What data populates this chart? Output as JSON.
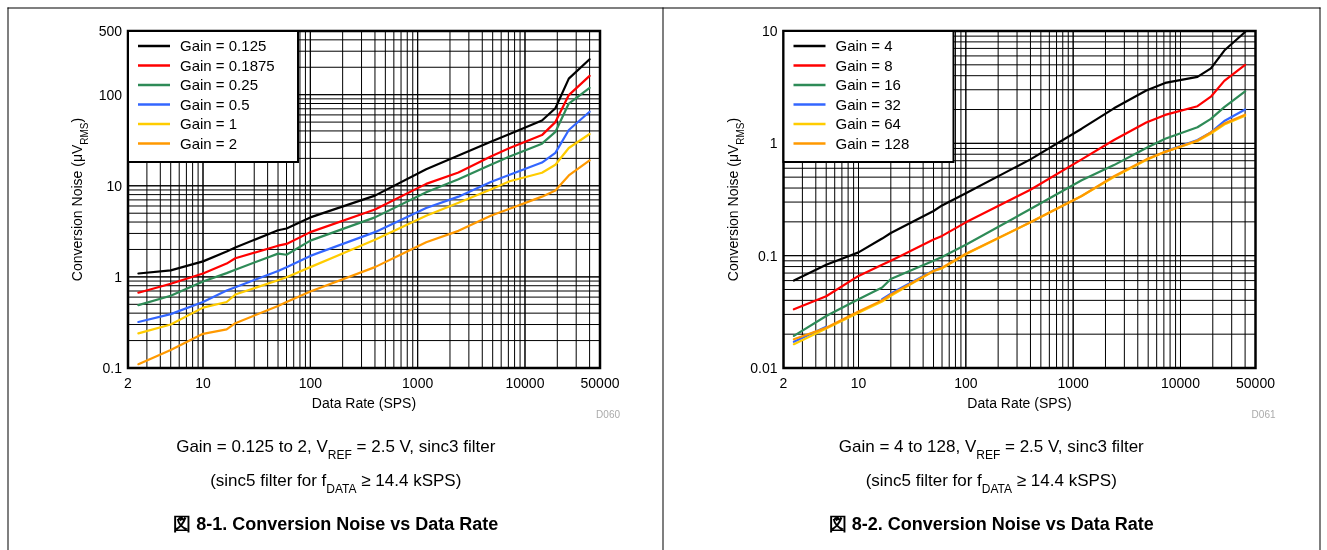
{
  "chart_data": [
    {
      "type": "line",
      "title": "図 8-1. Conversion Noise vs Data Rate",
      "xlabel": "Data Rate (SPS)",
      "ylabel": "Conversion Noise (μV$_{RMS}$)",
      "log": "xy",
      "grid": true,
      "legend": "top left",
      "line_style": "solid",
      "marker": "none",
      "annotations": [
        "D060",
        "Gain = 0.125 to 2, V$_{REF}$ = 2.5 V, sinc3 filter",
        "(sinc5 filter for f$_{DATA}$ ≥ 14.4 kSPS)"
      ],
      "xlim": [
        2,
        50000
      ],
      "xticks": [
        2,
        10,
        100,
        1000,
        10000,
        50000
      ],
      "ylim": [
        0.1,
        500
      ],
      "yticks": [
        0.1,
        1,
        10,
        100,
        500
      ],
      "x": [
        2.5,
        5,
        10,
        16.6,
        20,
        50,
        60,
        100,
        400,
        1200,
        2400,
        4800,
        7200,
        14400,
        19200,
        25600,
        40000
      ],
      "series": [
        {
          "name": "Gain = 0.125",
          "color": "#000000",
          "values": [
            1.09,
            1.18,
            1.48,
            1.9,
            2.1,
            3.25,
            3.4,
            4.5,
            7.8,
            15.2,
            21.5,
            30.5,
            37,
            52,
            71,
            150,
            245
          ]
        },
        {
          "name": "Gain = 0.1875",
          "color": "#ff0000",
          "values": [
            0.67,
            0.84,
            1.09,
            1.4,
            1.6,
            2.2,
            2.3,
            3.1,
            5.5,
            10.5,
            14,
            21,
            26,
            36,
            50,
            99,
            161
          ]
        },
        {
          "name": "Gain = 0.25",
          "color": "#2e8b57",
          "values": [
            0.49,
            0.62,
            0.89,
            1.1,
            1.2,
            1.8,
            1.75,
            2.5,
            4.5,
            8.5,
            11.8,
            17,
            21,
            29,
            39,
            80,
            119
          ]
        },
        {
          "name": "Gain = 0.5",
          "color": "#3366ff",
          "values": [
            0.32,
            0.39,
            0.53,
            0.71,
            0.77,
            1.16,
            1.28,
            1.7,
            3.1,
            5.7,
            7.6,
            11,
            13.2,
            18,
            23,
            41,
            65
          ]
        },
        {
          "name": "Gain = 1",
          "color": "#ffcc00",
          "values": [
            0.24,
            0.3,
            0.46,
            0.53,
            0.64,
            0.92,
            0.99,
            1.28,
            2.55,
            4.7,
            6.5,
            9.1,
            11.2,
            13.9,
            17,
            26,
            37
          ]
        },
        {
          "name": "Gain = 2",
          "color": "#ff9900",
          "values": [
            0.11,
            0.158,
            0.237,
            0.265,
            0.31,
            0.48,
            0.53,
            0.69,
            1.28,
            2.4,
            3.2,
            4.7,
            5.6,
            7.6,
            8.9,
            13,
            19
          ]
        }
      ]
    },
    {
      "type": "line",
      "title": "図 8-2. Conversion Noise vs Data Rate",
      "xlabel": "Data Rate (SPS)",
      "ylabel": "Conversion Noise (μV$_{RMS}$)",
      "log": "xy",
      "grid": true,
      "legend": "top left",
      "line_style": "solid",
      "marker": "none",
      "annotations": [
        "D061",
        "Gain = 4 to 128, V$_{REF}$ = 2.5 V, sinc3 filter",
        "(sinc5 filter for f$_{DATA}$ ≥ 14.4 kSPS)"
      ],
      "xlim": [
        2,
        50000
      ],
      "xticks": [
        2,
        10,
        100,
        1000,
        10000,
        50000
      ],
      "ylim": [
        0.01,
        10
      ],
      "yticks": [
        0.01,
        0.1,
        1,
        10
      ],
      "x": [
        2.5,
        5,
        10,
        16.6,
        20,
        50,
        60,
        100,
        400,
        1200,
        2400,
        4800,
        7200,
        14400,
        19200,
        25600,
        40000
      ],
      "series": [
        {
          "name": "Gain = 4",
          "color": "#000000",
          "values": [
            0.06,
            0.083,
            0.107,
            0.142,
            0.159,
            0.25,
            0.28,
            0.36,
            0.72,
            1.35,
            2.05,
            2.95,
            3.45,
            3.9,
            4.65,
            6.7,
            9.8
          ]
        },
        {
          "name": "Gain = 8",
          "color": "#ff0000",
          "values": [
            0.0333,
            0.0435,
            0.066,
            0.083,
            0.09,
            0.139,
            0.15,
            0.198,
            0.386,
            0.72,
            1.07,
            1.53,
            1.79,
            2.14,
            2.6,
            3.6,
            5
          ]
        },
        {
          "name": "Gain = 16",
          "color": "#2e8b57",
          "values": [
            0.0193,
            0.029,
            0.041,
            0.052,
            0.062,
            0.09,
            0.0975,
            0.125,
            0.26,
            0.47,
            0.64,
            0.91,
            1.1,
            1.39,
            1.65,
            2.1,
            2.9
          ]
        },
        {
          "name": "Gain = 32",
          "color": "#3366ff",
          "values": [
            0.0171,
            0.0233,
            null,
            0.041,
            0.046,
            0.074,
            0.079,
            null,
            null,
            null,
            null,
            null,
            0.85,
            1.07,
            1.25,
            1.58,
            2
          ]
        },
        {
          "name": "Gain = 64",
          "color": "#ffcc00",
          "values": [
            0.0163,
            0.0225,
            0.031,
            0.039,
            0.044,
            0.073,
            0.077,
            0.103,
            0.198,
            0.34,
            0.5,
            0.71,
            0.84,
            1.05,
            1.22,
            1.47,
            1.76
          ]
        },
        {
          "name": "Gain = 128",
          "color": "#ff9900",
          "values": [
            0.018,
            0.0228,
            0.0318,
            0.04,
            0.045,
            0.073,
            0.078,
            0.104,
            0.198,
            0.34,
            0.51,
            0.72,
            0.84,
            1.06,
            1.25,
            1.5,
            1.8
          ]
        }
      ]
    }
  ]
}
